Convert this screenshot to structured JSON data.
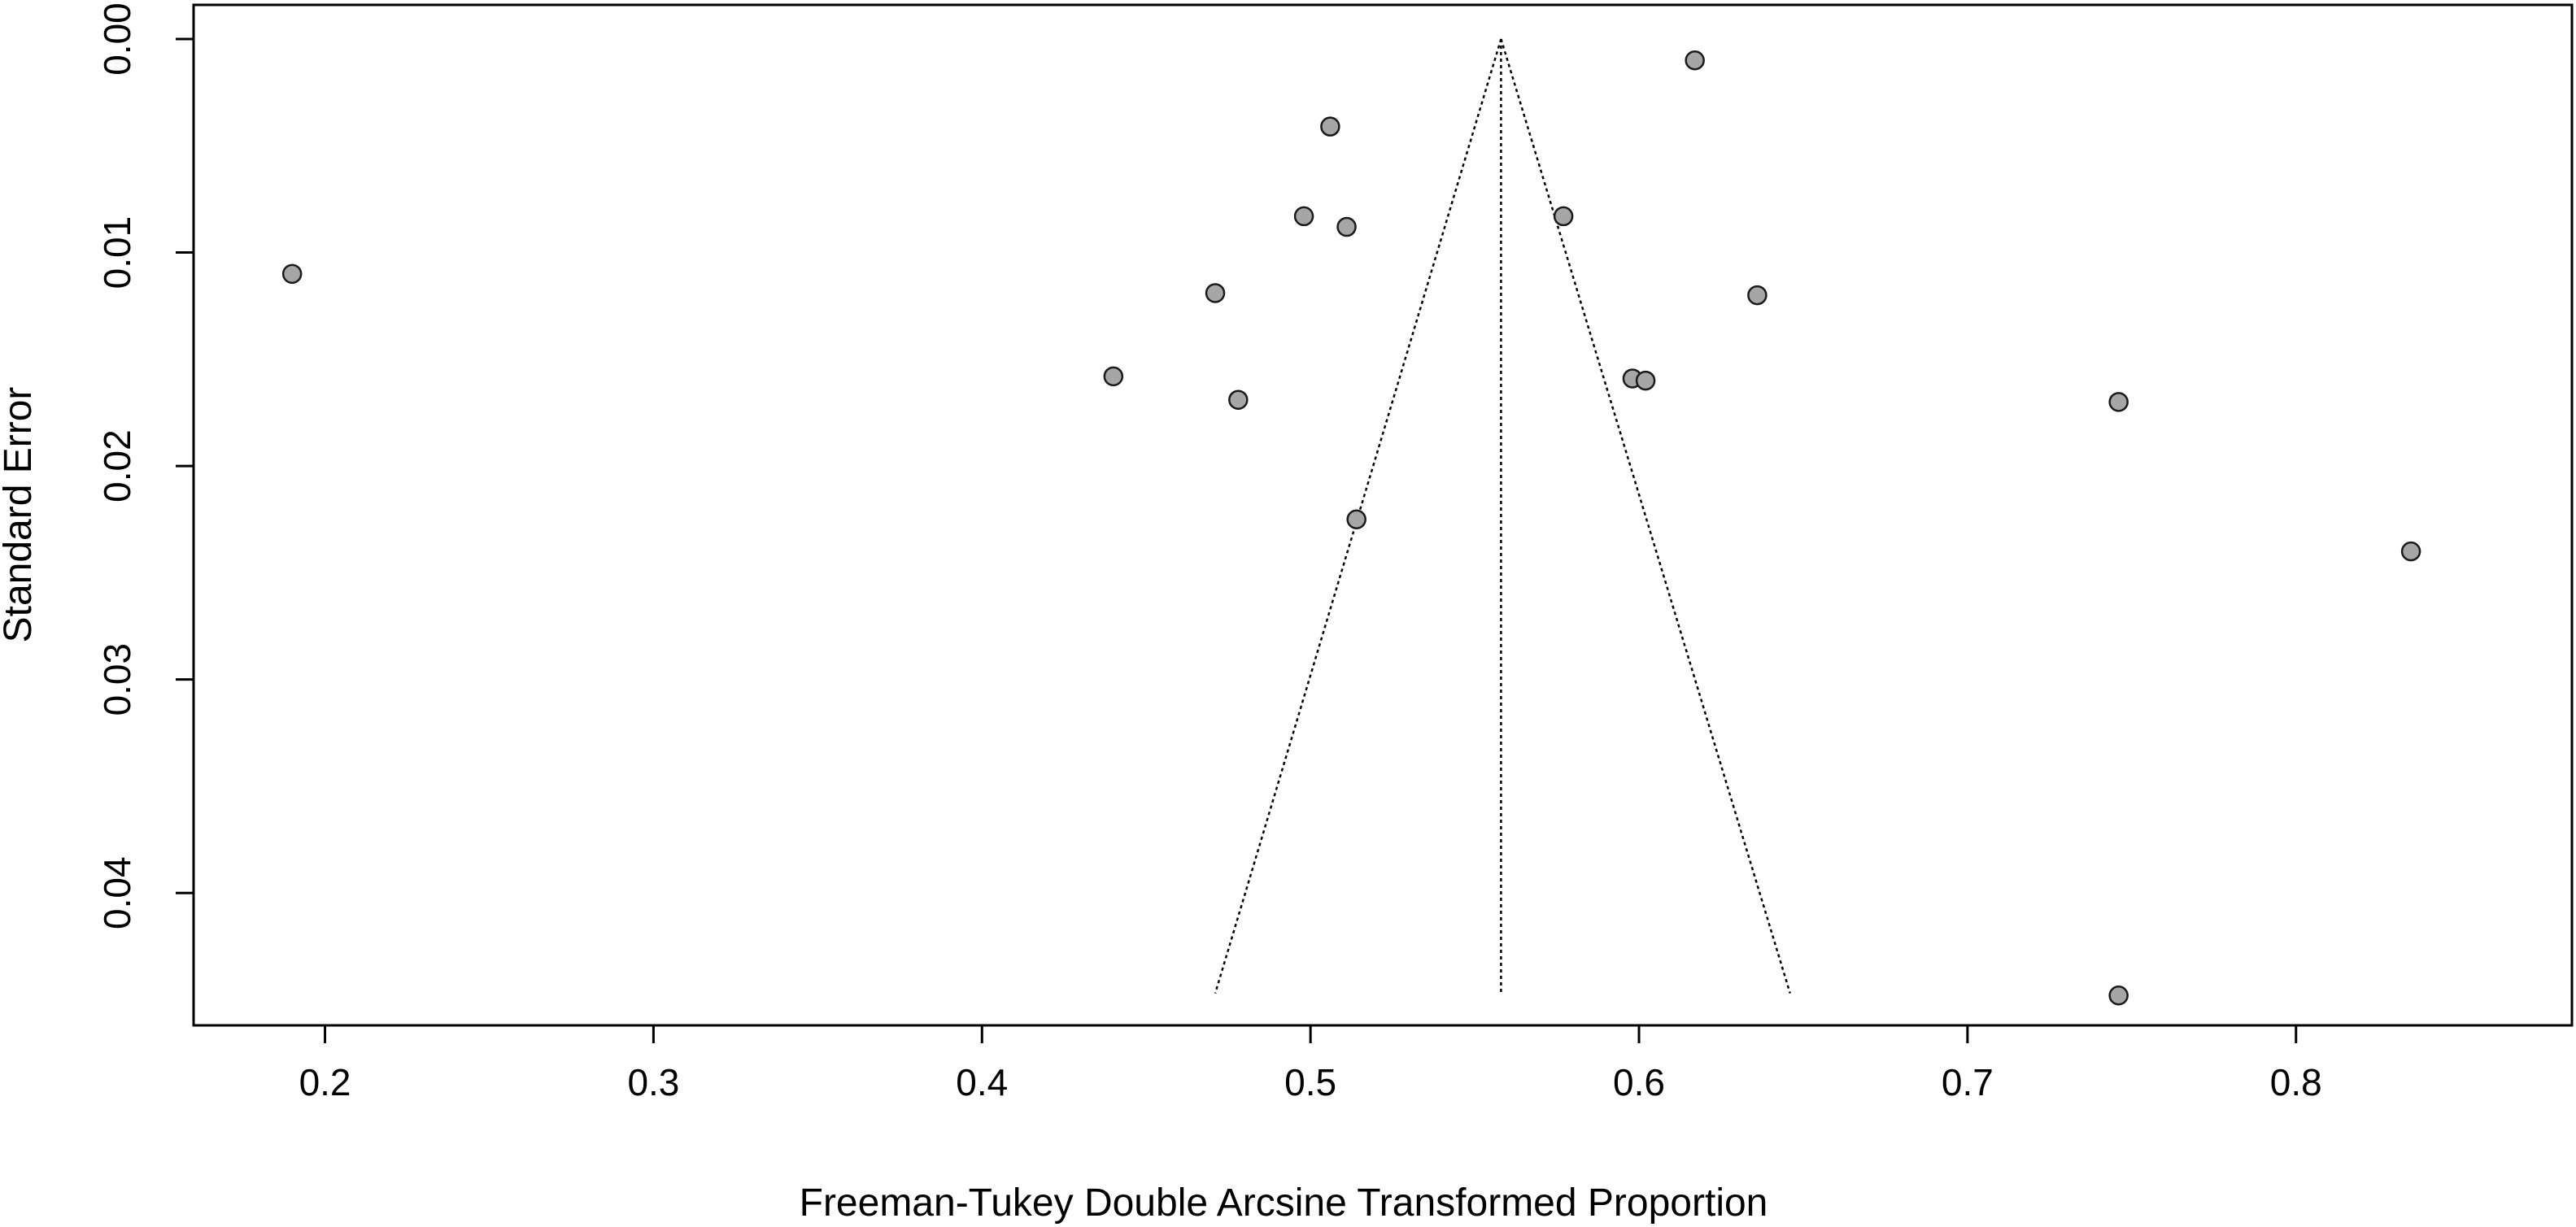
{
  "chart_data": {
    "type": "scatter",
    "title": "",
    "xlabel": "Freeman-Tukey Double Arcsine Transformed Proportion",
    "ylabel": "Standard Error",
    "xlim": [
      0.16,
      0.884
    ],
    "ylim": [
      0.0462,
      -0.0016
    ],
    "y_reversed": true,
    "x_ticks": [
      "0.2",
      "0.3",
      "0.4",
      "0.5",
      "0.6",
      "0.7",
      "0.8"
    ],
    "y_ticks": [
      "0.00",
      "0.01",
      "0.02",
      "0.03",
      "0.04"
    ],
    "grid": false,
    "legend": "none",
    "point_fill": "#a6a6a6",
    "point_stroke": "#1a1a1a",
    "funnel": {
      "center": 0.558,
      "se_max": 0.0447,
      "se_min": 0.0,
      "left_bottom": 0.471,
      "right_bottom": 0.646
    },
    "points": [
      {
        "x": 0.19,
        "y": 0.011
      },
      {
        "x": 0.44,
        "y": 0.0158
      },
      {
        "x": 0.471,
        "y": 0.0119
      },
      {
        "x": 0.478,
        "y": 0.0169
      },
      {
        "x": 0.498,
        "y": 0.0083
      },
      {
        "x": 0.506,
        "y": 0.0041
      },
      {
        "x": 0.511,
        "y": 0.0088
      },
      {
        "x": 0.514,
        "y": 0.0225
      },
      {
        "x": 0.577,
        "y": 0.0083
      },
      {
        "x": 0.598,
        "y": 0.0159
      },
      {
        "x": 0.602,
        "y": 0.016
      },
      {
        "x": 0.617,
        "y": 0.001
      },
      {
        "x": 0.636,
        "y": 0.012
      },
      {
        "x": 0.746,
        "y": 0.017
      },
      {
        "x": 0.746,
        "y": 0.0448
      },
      {
        "x": 0.835,
        "y": 0.024
      }
    ]
  }
}
